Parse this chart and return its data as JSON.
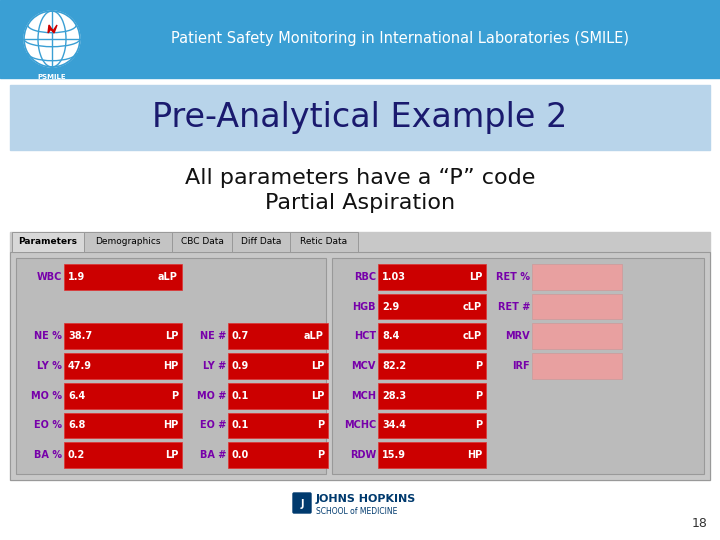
{
  "header_bg": "#3a9fd4",
  "header_text": "Patient Safety Monitoring in International Laboratories (SMILE)",
  "header_text_color": "#ffffff",
  "title_bg": "#b8d4ea",
  "title_text": "Pre-Analytical Example 2",
  "title_text_color": "#1a1a6e",
  "subtitle_line1": "All parameters have a “P” code",
  "subtitle_line2": "Partial Aspiration",
  "subtitle_color": "#111111",
  "slide_bg": "#ffffff",
  "panel_bg": "#c8c8c8",
  "tab_labels": [
    "Parameters",
    "Demographics",
    "CBC Data",
    "Diff Data",
    "Retic Data"
  ],
  "cell_red": "#cc0000",
  "cell_pink": "#e8a0a0",
  "label_color": "#7700aa",
  "footer_number": "18",
  "left_rows": [
    {
      "label": "WBC",
      "value": "1.9",
      "code": "aLP",
      "show": true
    },
    {
      "label": "",
      "value": "",
      "code": "",
      "show": false
    },
    {
      "label": "NE %",
      "value": "38.7",
      "code": "LP",
      "show": true
    },
    {
      "label": "LY %",
      "value": "47.9",
      "code": "HP",
      "show": true
    },
    {
      "label": "MO %",
      "value": "6.4",
      "code": "P",
      "show": true
    },
    {
      "label": "EO %",
      "value": "6.8",
      "code": "HP",
      "show": true
    },
    {
      "label": "BA %",
      "value": "0.2",
      "code": "LP",
      "show": true
    }
  ],
  "mid_rows": [
    {
      "label": "",
      "value": "",
      "code": "",
      "show": false
    },
    {
      "label": "",
      "value": "",
      "code": "",
      "show": false
    },
    {
      "label": "NE #",
      "value": "0.7",
      "code": "aLP",
      "show": true
    },
    {
      "label": "LY #",
      "value": "0.9",
      "code": "LP",
      "show": true
    },
    {
      "label": "MO #",
      "value": "0.1",
      "code": "LP",
      "show": true
    },
    {
      "label": "EO #",
      "value": "0.1",
      "code": "P",
      "show": true
    },
    {
      "label": "BA #",
      "value": "0.0",
      "code": "P",
      "show": true
    }
  ],
  "right_rows": [
    {
      "label": "RBC",
      "value": "1.03",
      "code": "LP",
      "show": true
    },
    {
      "label": "HGB",
      "value": "2.9",
      "code": "cLP",
      "show": true
    },
    {
      "label": "HCT",
      "value": "8.4",
      "code": "cLP",
      "show": true
    },
    {
      "label": "MCV",
      "value": "82.2",
      "code": "P",
      "show": true
    },
    {
      "label": "MCH",
      "value": "28.3",
      "code": "P",
      "show": true
    },
    {
      "label": "MCHC",
      "value": "34.4",
      "code": "P",
      "show": true
    },
    {
      "label": "RDW",
      "value": "15.9",
      "code": "HP",
      "show": true
    }
  ],
  "far_right_rows": [
    {
      "label": "RET %",
      "show": true
    },
    {
      "label": "RET #",
      "show": true
    },
    {
      "label": "MRV",
      "show": true
    },
    {
      "label": "IRF",
      "show": true
    }
  ]
}
